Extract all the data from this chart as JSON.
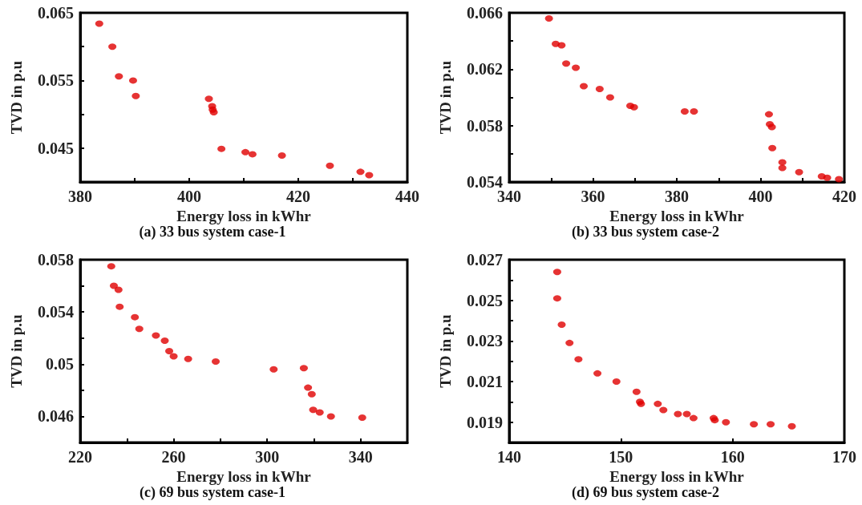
{
  "chart_data": [
    {
      "type": "scatter",
      "title": "(a) 33 bus system case-1",
      "xlabel": "Energy loss in kWhr",
      "ylabel": "TVD in p.u",
      "marker": "circle",
      "grid": false,
      "xlim": [
        380,
        440
      ],
      "xticks": [
        380,
        {
          "value": 390,
          "label": null
        },
        400,
        {
          "value": 410,
          "label": null
        },
        420,
        {
          "value": 430,
          "label": null
        },
        440
      ],
      "ylim": [
        0.04,
        0.065
      ],
      "yticks": [
        {
          "value": 0.04,
          "label": null
        },
        0.045,
        {
          "value": 0.05,
          "label": null
        },
        0.055,
        {
          "value": 0.06,
          "label": null
        },
        0.065
      ],
      "series": [
        {
          "color": "#e00000",
          "x": [
            383.5,
            385.9,
            387.1,
            389.7,
            390.2,
            403.6,
            404.2,
            404.3,
            404.5,
            405.9,
            410.3,
            411.6,
            417.0,
            425.8,
            431.4,
            433.0
          ],
          "values": [
            0.0634,
            0.06,
            0.0556,
            0.055,
            0.0527,
            0.0523,
            0.0512,
            0.0507,
            0.0503,
            0.0449,
            0.0444,
            0.0441,
            0.0439,
            0.0424,
            0.0415,
            0.041
          ]
        }
      ]
    },
    {
      "type": "scatter",
      "title": "(b) 33 bus system case-2",
      "xlabel": "Energy loss in kWhr",
      "ylabel": "TVD in p.u",
      "marker": "circle",
      "grid": false,
      "xlim": [
        340,
        420
      ],
      "xticks": [
        340,
        {
          "value": 350,
          "label": null
        },
        360,
        {
          "value": 370,
          "label": null
        },
        380,
        {
          "value": 390,
          "label": null
        },
        400,
        {
          "value": 410,
          "label": null
        },
        420
      ],
      "ylim": [
        0.054,
        0.066
      ],
      "yticks": [
        0.054,
        {
          "value": 0.056,
          "label": null
        },
        0.058,
        {
          "value": 0.06,
          "label": null
        },
        0.062,
        {
          "value": 0.064,
          "label": null
        },
        0.066
      ],
      "series": [
        {
          "color": "#e00000",
          "x": [
            349.5,
            351.1,
            352.5,
            353.6,
            355.9,
            357.8,
            361.6,
            364.1,
            368.9,
            369.8,
            381.9,
            384.1,
            402.0,
            402.2,
            402.7,
            402.8,
            405.2,
            405.2,
            409.2,
            414.6,
            415.9,
            418.7
          ],
          "values": [
            0.0656,
            0.0638,
            0.0637,
            0.0624,
            0.0621,
            0.0608,
            0.0606,
            0.06,
            0.0594,
            0.0593,
            0.059,
            0.059,
            0.0588,
            0.0581,
            0.0579,
            0.0564,
            0.0554,
            0.055,
            0.0547,
            0.0544,
            0.0543,
            0.0542
          ]
        }
      ]
    },
    {
      "type": "scatter",
      "title": "(c) 69 bus system case-1",
      "xlabel": "Energy loss in kWhr",
      "ylabel": "TVD in p.u",
      "marker": "circle",
      "grid": false,
      "xlim": [
        220,
        360
      ],
      "xticks": [
        220,
        {
          "value": 240,
          "label": null
        },
        260,
        {
          "value": 280,
          "label": null
        },
        300,
        {
          "value": 320,
          "label": null
        },
        340,
        {
          "value": 360,
          "label": null
        }
      ],
      "ylim": [
        0.044,
        0.058
      ],
      "yticks": [
        {
          "value": 0.044,
          "label": null
        },
        0.046,
        {
          "value": 0.048,
          "label": null
        },
        0.05,
        {
          "value": 0.052,
          "label": null
        },
        0.054,
        {
          "value": 0.056,
          "label": null
        },
        0.058
      ],
      "series": [
        {
          "color": "#e00000",
          "x": [
            233.3,
            234.4,
            236.4,
            236.9,
            243.4,
            245.3,
            252.4,
            256.2,
            258.1,
            260.0,
            266.2,
            278.0,
            302.8,
            315.7,
            317.5,
            319.1,
            319.7,
            322.5,
            327.3,
            340.7
          ],
          "values": [
            0.0575,
            0.056,
            0.0557,
            0.0544,
            0.0536,
            0.0527,
            0.0522,
            0.0518,
            0.051,
            0.0506,
            0.0504,
            0.0502,
            0.0496,
            0.0497,
            0.0482,
            0.0477,
            0.0465,
            0.0463,
            0.046,
            0.0459
          ]
        }
      ]
    },
    {
      "type": "scatter",
      "title": "(d) 69 bus system case-2",
      "xlabel": "Energy loss in kWhr",
      "ylabel": "TVD in p.u",
      "marker": "circle",
      "grid": false,
      "xlim": [
        140,
        170
      ],
      "xticks": [
        140,
        150,
        160,
        170
      ],
      "ylim": [
        0.018,
        0.027
      ],
      "yticks": [
        {
          "value": 0.018,
          "label": null
        },
        0.019,
        {
          "value": 0.02,
          "label": null
        },
        0.021,
        {
          "value": 0.022,
          "label": null
        },
        0.023,
        {
          "value": 0.024,
          "label": null
        },
        0.025,
        {
          "value": 0.026,
          "label": null
        },
        0.027
      ],
      "series": [
        {
          "color": "#e00000",
          "x": [
            144.3,
            144.3,
            144.7,
            145.4,
            146.2,
            147.9,
            149.6,
            151.4,
            151.7,
            151.8,
            153.3,
            153.8,
            155.1,
            155.9,
            156.5,
            158.3,
            158.4,
            159.4,
            161.9,
            163.4,
            165.3
          ],
          "values": [
            0.0264,
            0.0251,
            0.0238,
            0.0229,
            0.0221,
            0.0214,
            0.021,
            0.0205,
            0.02,
            0.0199,
            0.0199,
            0.0196,
            0.0194,
            0.0194,
            0.0192,
            0.0192,
            0.0191,
            0.019,
            0.0189,
            0.0189,
            0.0188
          ]
        }
      ]
    }
  ]
}
